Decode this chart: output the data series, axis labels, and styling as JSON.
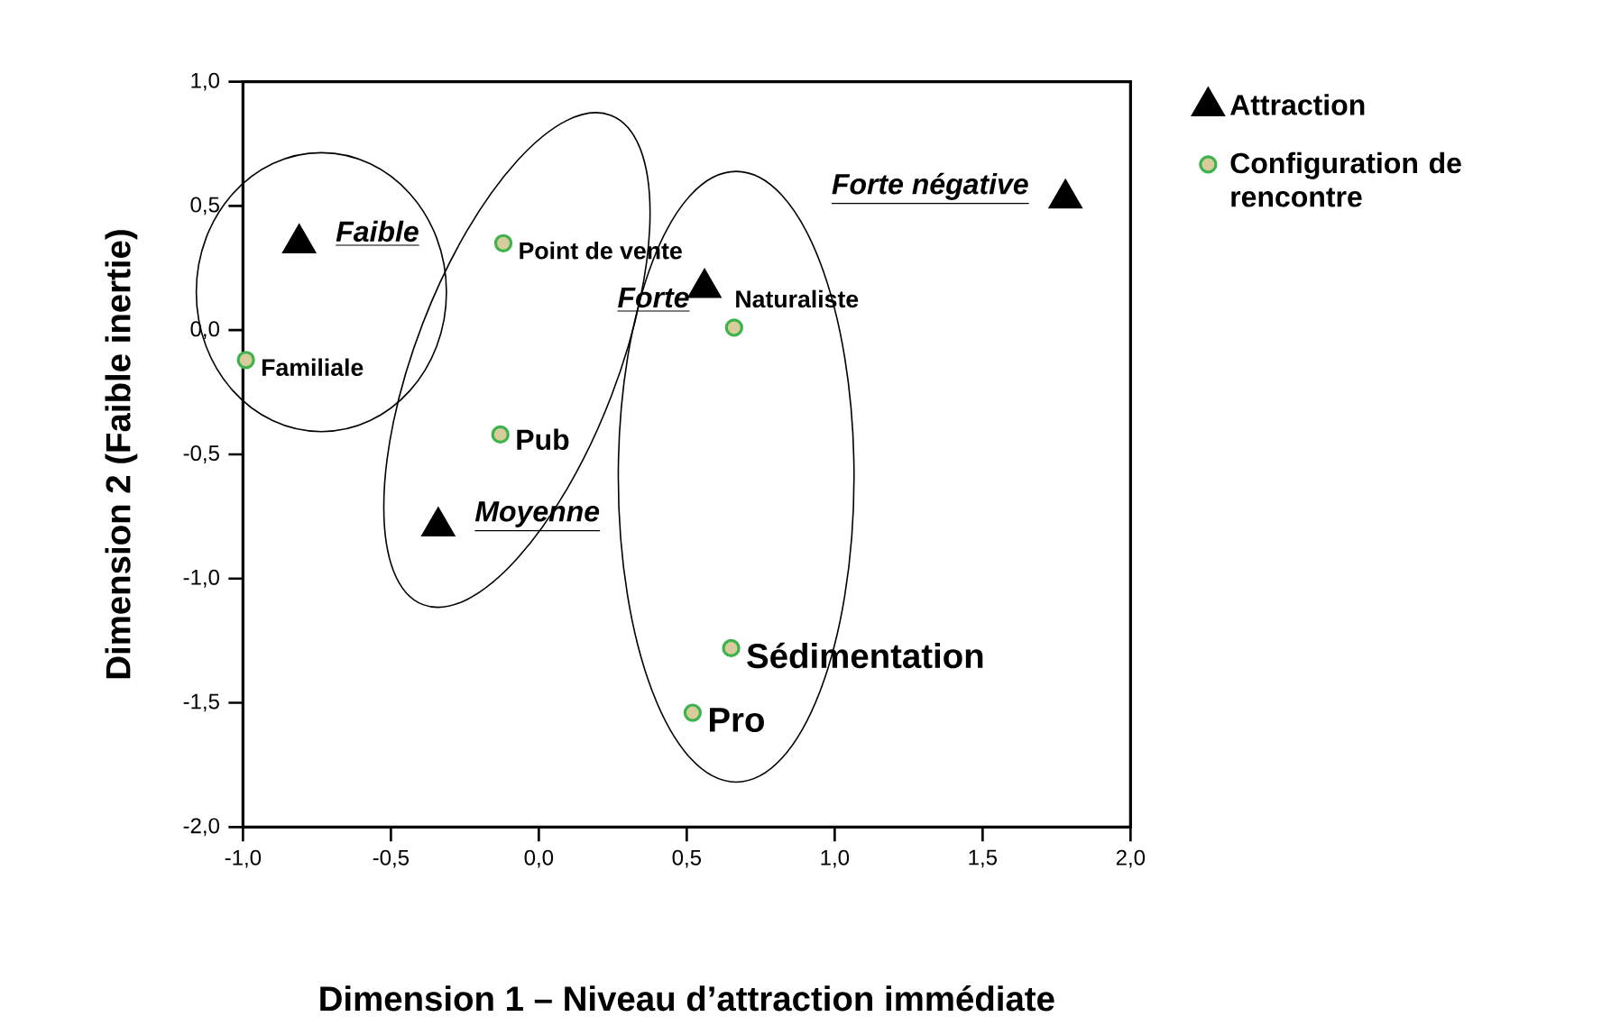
{
  "chart_data": {
    "type": "scatter",
    "xlabel": "Dimension 1 – Niveau d’attraction immédiate",
    "ylabel": "Dimension 2 (Faible inertie)",
    "xlim": [
      -1,
      2
    ],
    "ylim": [
      -2,
      1
    ],
    "xticks": [
      {
        "value": -1,
        "label": "-1,0"
      },
      {
        "value": -0.5,
        "label": "-0,5"
      },
      {
        "value": 0,
        "label": "0,0"
      },
      {
        "value": 0.5,
        "label": "0,5"
      },
      {
        "value": 1,
        "label": "1,0"
      },
      {
        "value": 1.5,
        "label": "1,5"
      },
      {
        "value": 2,
        "label": "2,0"
      }
    ],
    "yticks": [
      {
        "value": -2,
        "label": "-2,0"
      },
      {
        "value": -1.5,
        "label": "-1,5"
      },
      {
        "value": -1,
        "label": "-1,0"
      },
      {
        "value": -0.5,
        "label": "-0,5"
      },
      {
        "value": 0,
        "label": "0,0"
      },
      {
        "value": 0.5,
        "label": "0,5"
      },
      {
        "value": 1,
        "label": "1,0"
      }
    ],
    "legend": "top right",
    "grid": false,
    "series": [
      {
        "name": "Attraction",
        "color": "#000000",
        "marker": "triangle",
        "x": [
          -0.81,
          -0.34,
          0.56,
          1.78
        ],
        "values": [
          0.35,
          -0.79,
          0.17,
          0.53
        ]
      },
      {
        "name": "Configuration de rencontre",
        "color": "#3cb44b",
        "marker": "circle",
        "x": [
          -0.12,
          -0.99,
          -0.13,
          0.66,
          0.65,
          0.52
        ],
        "values": [
          0.35,
          -0.12,
          -0.42,
          0.01,
          -1.28,
          -1.54
        ]
      }
    ],
    "annotations": [
      {
        "text": "Faible",
        "x": -0.81,
        "y": 0.35
      },
      {
        "text": "Moyenne",
        "x": -0.34,
        "y": -0.79
      },
      {
        "text": "Forte",
        "x": 0.56,
        "y": 0.17
      },
      {
        "text": "Forte négative",
        "x": 1.78,
        "y": 0.53
      },
      {
        "text": "Point de vente",
        "x": -0.12,
        "y": 0.35
      },
      {
        "text": "Familiale",
        "x": -0.99,
        "y": -0.12
      },
      {
        "text": "Pub",
        "x": -0.13,
        "y": -0.42
      },
      {
        "text": "Naturaliste",
        "x": 0.66,
        "y": 0.01
      },
      {
        "text": "Sédimentation",
        "x": 0.65,
        "y": -1.28
      },
      {
        "text": "Pro",
        "x": 0.52,
        "y": -1.54
      }
    ]
  }
}
